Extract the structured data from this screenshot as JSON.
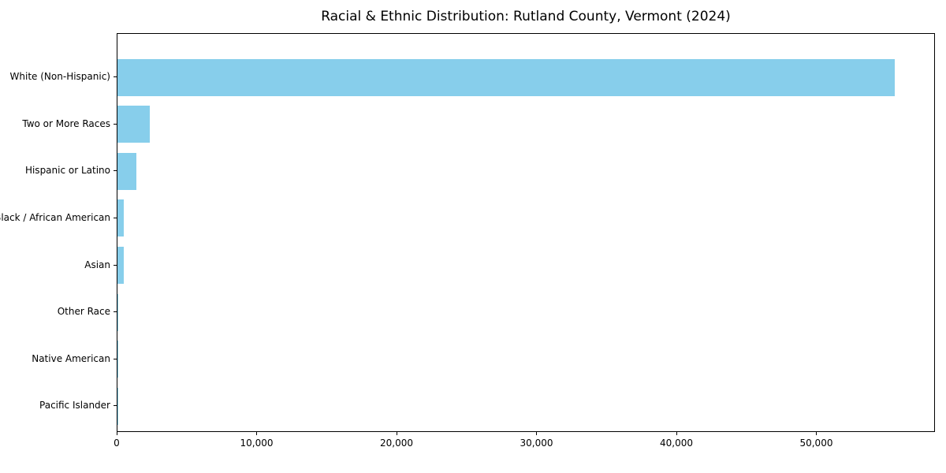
{
  "chart_data": {
    "type": "bar",
    "orientation": "horizontal",
    "title": "Racial & Ethnic Distribution: Rutland County, Vermont (2024)",
    "categories": [
      "White (Non-Hispanic)",
      "Two or More Races",
      "Hispanic or Latino",
      "Black / African American",
      "Asian",
      "Other Race",
      "Native American",
      "Pacific Islander"
    ],
    "values": [
      55650,
      2290,
      1350,
      430,
      425,
      15,
      10,
      5
    ],
    "xlabel": "",
    "ylabel": "",
    "xlim": [
      0,
      58480
    ],
    "xticks": [
      0,
      10000,
      20000,
      30000,
      40000,
      50000
    ],
    "xtick_labels": [
      "0",
      "10,000",
      "20,000",
      "30,000",
      "40,000",
      "50,000"
    ],
    "bar_color": "#87CEEB",
    "axis_color": "#000000",
    "background_color": "#FFFFFF",
    "grid": false,
    "legend": false
  }
}
